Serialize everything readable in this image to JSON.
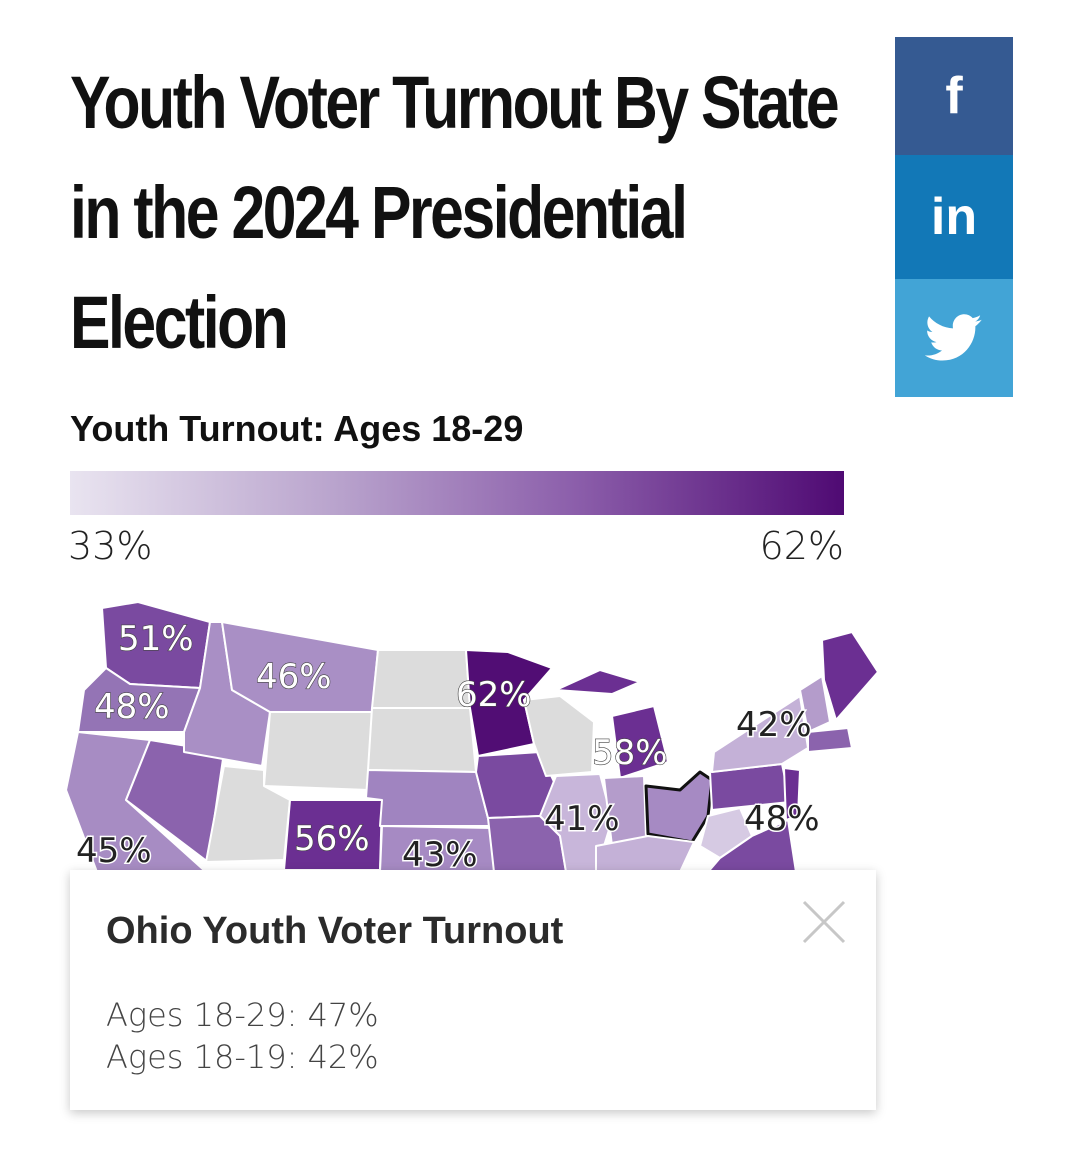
{
  "title": {
    "line1": "Youth Voter Turnout By State",
    "line2": "in the 2024 Presidential",
    "line3": "Election"
  },
  "share": {
    "facebook_glyph": "f",
    "linkedin_glyph": "in",
    "facebook_color": "#355a92",
    "linkedin_color": "#1278b7",
    "twitter_color": "#42a4d6"
  },
  "legend": {
    "title": "Youth Turnout: Ages 18-29",
    "min_label": "33%",
    "max_label": "62%",
    "color_low": "#e9e4f0",
    "color_high": "#4f0a73"
  },
  "map_labels": [
    {
      "text": "51%",
      "state": "Washington"
    },
    {
      "text": "48%",
      "state": "Oregon"
    },
    {
      "text": "46%",
      "state": "Montana"
    },
    {
      "text": "62%",
      "state": "Minnesota"
    },
    {
      "text": "58%",
      "state": "Michigan"
    },
    {
      "text": "42%",
      "state": "Massachusetts"
    },
    {
      "text": "41%",
      "state": "Kentucky"
    },
    {
      "text": "48%",
      "state": "Virginia"
    },
    {
      "text": "45%",
      "state": "California"
    },
    {
      "text": "56%",
      "state": "Colorado"
    },
    {
      "text": "43%",
      "state": "Kansas"
    }
  ],
  "selected_state": "Ohio",
  "tooltip": {
    "title": "Ohio Youth Voter Turnout",
    "row1": "Ages 18-29: 47%",
    "row2": "Ages 18-19: 42%"
  }
}
